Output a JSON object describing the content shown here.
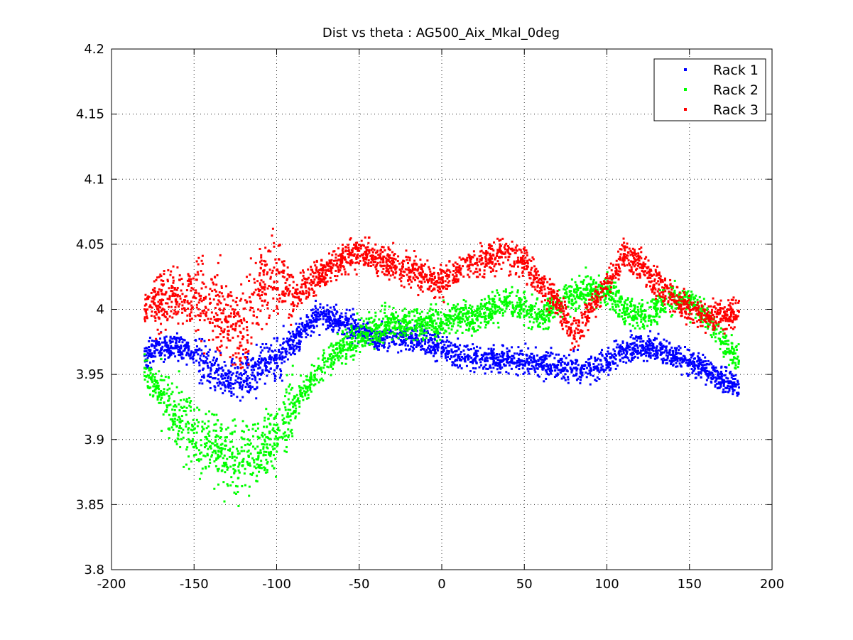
{
  "chart_data": {
    "type": "scatter",
    "title": "Dist vs theta : AG500_Aix_Mkal_0deg",
    "xlabel": "",
    "ylabel": "",
    "xlim": [
      -200,
      200
    ],
    "ylim": [
      3.8,
      4.2
    ],
    "x_ticks": [
      -200,
      -150,
      -100,
      -50,
      0,
      50,
      100,
      150,
      200
    ],
    "x_tick_labels": [
      "-200",
      "-150",
      "-100",
      "-50",
      "0",
      "50",
      "100",
      "150",
      "200"
    ],
    "y_ticks": [
      3.8,
      3.85,
      3.9,
      3.95,
      4.0,
      4.05,
      4.1,
      4.15,
      4.2
    ],
    "y_tick_labels": [
      "3.8",
      "3.85",
      "3.9",
      "3.95",
      "4",
      "4.05",
      "4.1",
      "4.15",
      "4.2"
    ],
    "grid": true,
    "legend_position": "top-right",
    "series": [
      {
        "name": "Rack 1",
        "color": "#0000ff",
        "points": [
          [
            -180,
            3.965
          ],
          [
            -170,
            3.97
          ],
          [
            -160,
            3.972
          ],
          [
            -150,
            3.965
          ],
          [
            -140,
            3.955
          ],
          [
            -130,
            3.945
          ],
          [
            -120,
            3.945
          ],
          [
            -110,
            3.955
          ],
          [
            -100,
            3.962
          ],
          [
            -90,
            3.975
          ],
          [
            -80,
            3.99
          ],
          [
            -70,
            3.995
          ],
          [
            -60,
            3.99
          ],
          [
            -50,
            3.985
          ],
          [
            -40,
            3.978
          ],
          [
            -30,
            3.978
          ],
          [
            -20,
            3.978
          ],
          [
            -10,
            3.975
          ],
          [
            0,
            3.97
          ],
          [
            10,
            3.965
          ],
          [
            20,
            3.962
          ],
          [
            30,
            3.962
          ],
          [
            40,
            3.962
          ],
          [
            50,
            3.96
          ],
          [
            60,
            3.958
          ],
          [
            70,
            3.955
          ],
          [
            80,
            3.955
          ],
          [
            90,
            3.955
          ],
          [
            100,
            3.96
          ],
          [
            110,
            3.968
          ],
          [
            120,
            3.972
          ],
          [
            130,
            3.97
          ],
          [
            140,
            3.965
          ],
          [
            150,
            3.96
          ],
          [
            160,
            3.955
          ],
          [
            170,
            3.945
          ],
          [
            180,
            3.94
          ]
        ]
      },
      {
        "name": "Rack 2",
        "color": "#00ff00",
        "points": [
          [
            -180,
            3.955
          ],
          [
            -170,
            3.935
          ],
          [
            -160,
            3.915
          ],
          [
            -150,
            3.905
          ],
          [
            -140,
            3.895
          ],
          [
            -130,
            3.885
          ],
          [
            -120,
            3.885
          ],
          [
            -110,
            3.89
          ],
          [
            -100,
            3.905
          ],
          [
            -90,
            3.925
          ],
          [
            -80,
            3.945
          ],
          [
            -70,
            3.96
          ],
          [
            -60,
            3.97
          ],
          [
            -50,
            3.98
          ],
          [
            -40,
            3.985
          ],
          [
            -30,
            3.99
          ],
          [
            -20,
            3.99
          ],
          [
            -10,
            3.99
          ],
          [
            0,
            3.99
          ],
          [
            10,
            3.995
          ],
          [
            20,
            3.995
          ],
          [
            30,
            4.0
          ],
          [
            40,
            4.005
          ],
          [
            50,
            4.0
          ],
          [
            60,
            3.995
          ],
          [
            70,
            4.005
          ],
          [
            80,
            4.01
          ],
          [
            90,
            4.015
          ],
          [
            100,
            4.015
          ],
          [
            110,
            4.0
          ],
          [
            120,
            3.995
          ],
          [
            130,
            4.0
          ],
          [
            140,
            4.01
          ],
          [
            150,
            4.005
          ],
          [
            160,
            3.995
          ],
          [
            170,
            3.975
          ],
          [
            180,
            3.96
          ]
        ]
      },
      {
        "name": "Rack 3",
        "color": "#ff0000",
        "points": [
          [
            -180,
            4.0
          ],
          [
            -170,
            4.005
          ],
          [
            -160,
            4.01
          ],
          [
            -150,
            4.01
          ],
          [
            -140,
            4.005
          ],
          [
            -130,
            3.99
          ],
          [
            -120,
            3.985
          ],
          [
            -110,
            4.02
          ],
          [
            -100,
            4.03
          ],
          [
            -90,
            4.01
          ],
          [
            -80,
            4.02
          ],
          [
            -70,
            4.03
          ],
          [
            -60,
            4.04
          ],
          [
            -50,
            4.045
          ],
          [
            -40,
            4.04
          ],
          [
            -30,
            4.035
          ],
          [
            -20,
            4.03
          ],
          [
            -10,
            4.025
          ],
          [
            0,
            4.02
          ],
          [
            10,
            4.03
          ],
          [
            20,
            4.035
          ],
          [
            30,
            4.04
          ],
          [
            40,
            4.045
          ],
          [
            50,
            4.035
          ],
          [
            60,
            4.02
          ],
          [
            70,
            4.005
          ],
          [
            80,
            3.98
          ],
          [
            90,
            4.0
          ],
          [
            100,
            4.02
          ],
          [
            110,
            4.04
          ],
          [
            120,
            4.035
          ],
          [
            130,
            4.02
          ],
          [
            140,
            4.01
          ],
          [
            150,
            4.0
          ],
          [
            160,
            3.995
          ],
          [
            170,
            3.995
          ],
          [
            180,
            3.998
          ]
        ]
      }
    ]
  }
}
